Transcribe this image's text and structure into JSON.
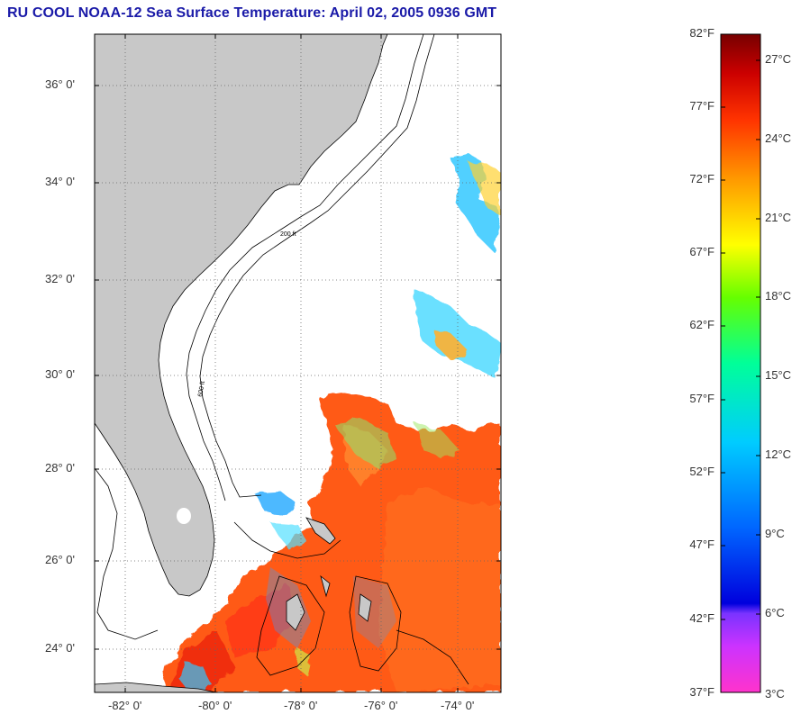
{
  "title": "RU COOL  NOAA-12  Sea Surface Temperature:  April 02, 2005 0936 GMT",
  "map": {
    "latitude_labels": [
      "36° 0'",
      "34° 0'",
      "32° 0'",
      "30° 0'",
      "28° 0'",
      "26° 0'",
      "24° 0'"
    ],
    "longitude_labels": [
      "-82° 0'",
      "-80° 0'",
      "-78° 0'",
      "-76° 0'",
      "-74° 0'"
    ],
    "isobath_labels": [
      "200 ft",
      "600 ft"
    ],
    "land_color": "#c8c8c8",
    "grid": "dotted"
  },
  "colorbar": {
    "fahrenheit_labels": [
      "82°F",
      "77°F",
      "72°F",
      "67°F",
      "62°F",
      "57°F",
      "52°F",
      "47°F",
      "42°F",
      "37°F"
    ],
    "celsius_labels": [
      "27°C",
      "24°C",
      "21°C",
      "18°C",
      "15°C",
      "12°C",
      "9°C",
      "6°C",
      "3°C"
    ],
    "gradient_stops": [
      "#ff33cc",
      "#9933ff",
      "#0000dd",
      "#0066ff",
      "#00ccff",
      "#00ff99",
      "#66ff00",
      "#ffff00",
      "#ff9900",
      "#ff3300",
      "#cc0000",
      "#770000"
    ]
  }
}
